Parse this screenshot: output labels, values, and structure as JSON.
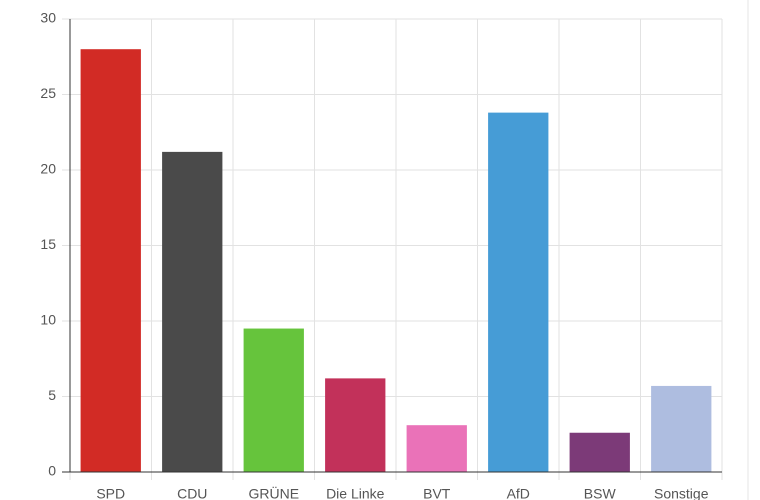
{
  "chart_data": {
    "type": "bar",
    "categories": [
      "SPD",
      "CDU",
      "GRÜNE",
      "Die Linke",
      "BVT",
      "AfD",
      "BSW",
      "Sonstige"
    ],
    "values": [
      28,
      21.2,
      9.5,
      6.2,
      3.1,
      23.8,
      2.6,
      5.7
    ],
    "colors": [
      "#d22b25",
      "#4a4a4a",
      "#66c43c",
      "#c2315a",
      "#ea72b8",
      "#469cd6",
      "#7c3a78",
      "#aebde0"
    ],
    "ylim": [
      0,
      30
    ],
    "yticks": [
      0,
      5,
      10,
      15,
      20,
      25,
      30
    ],
    "grid": true
  }
}
